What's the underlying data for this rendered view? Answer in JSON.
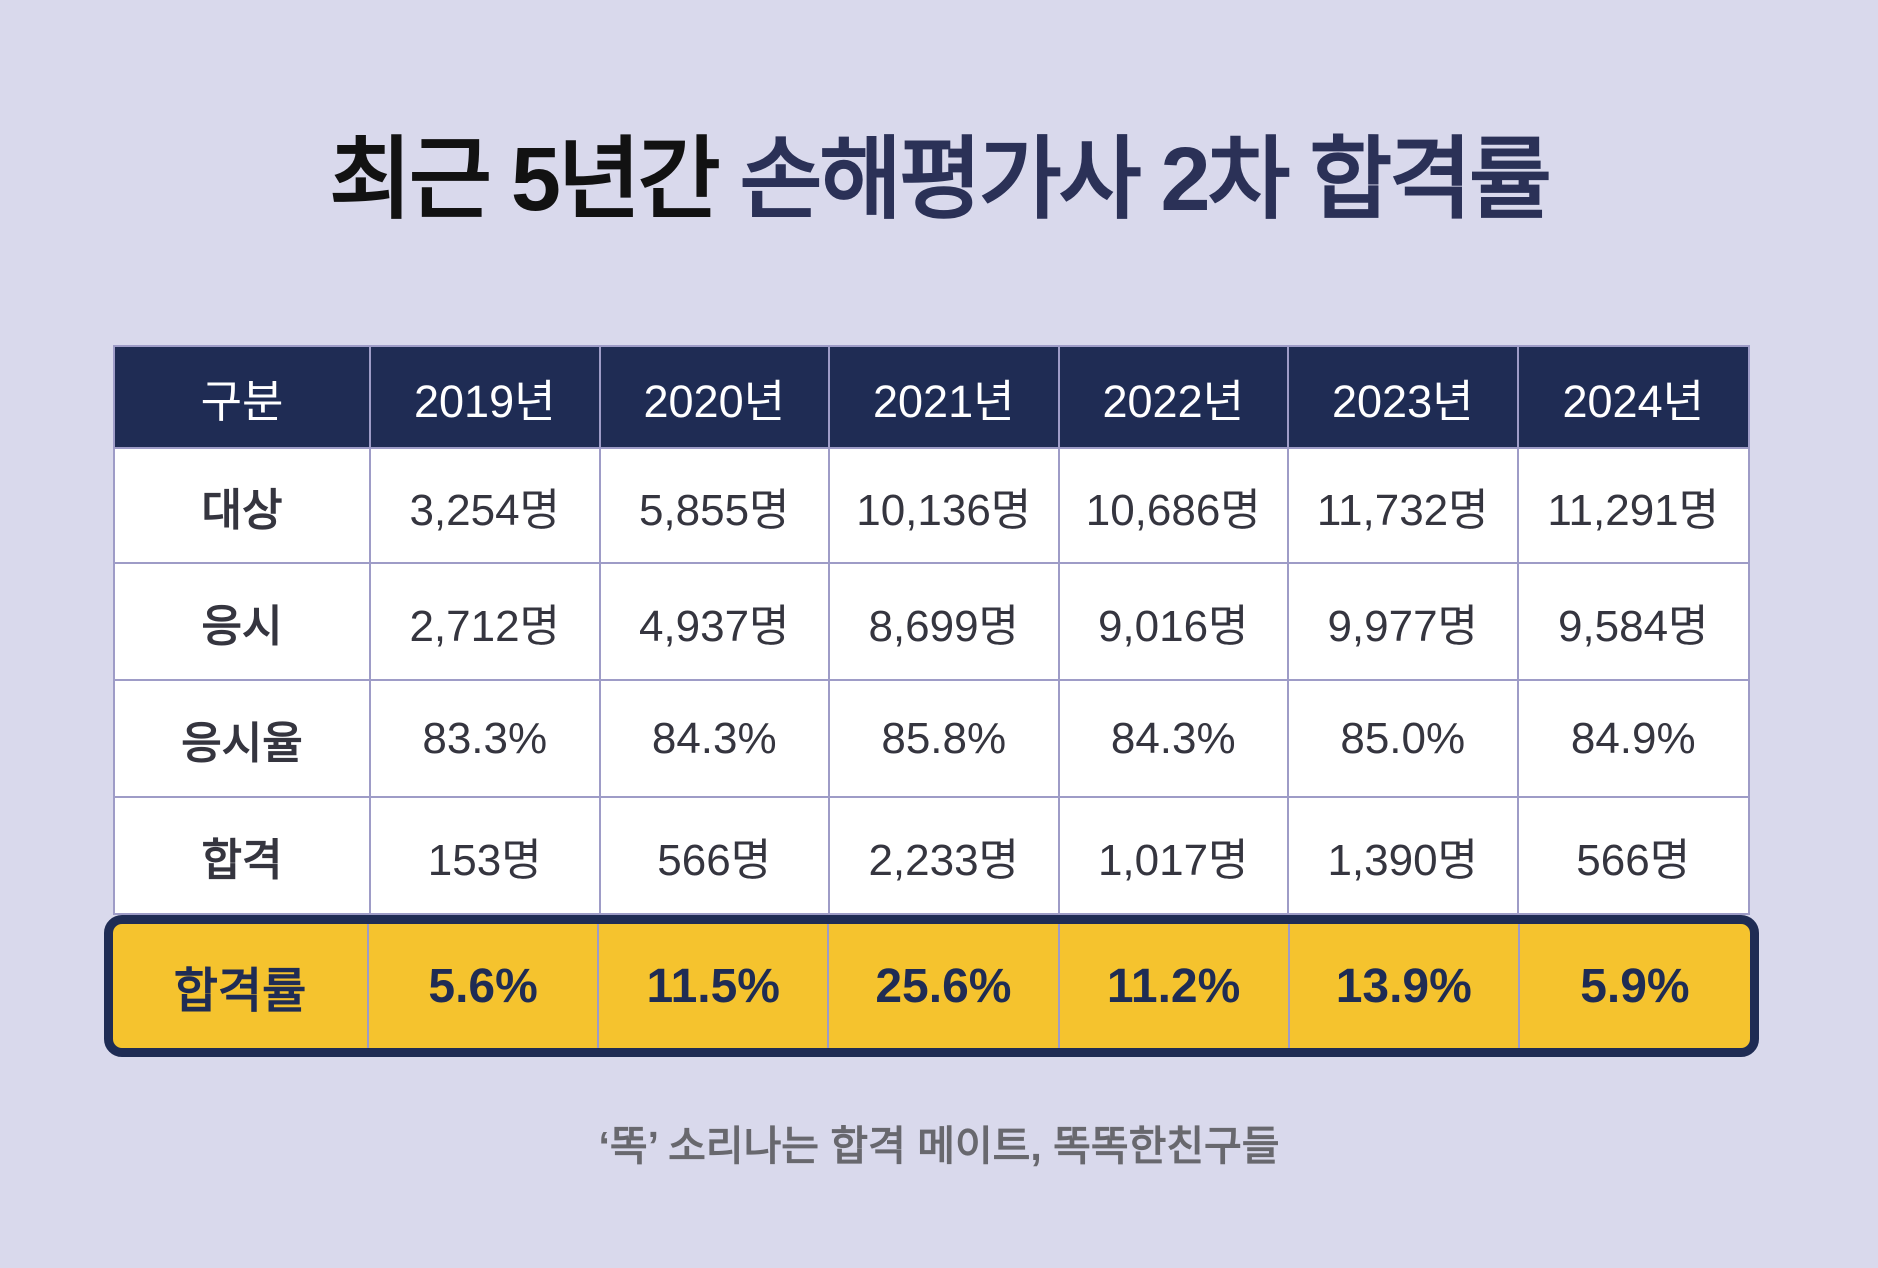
{
  "colors": {
    "background": "#d9d9ec",
    "header_bg": "#1f2c54",
    "header_text": "#ffffff",
    "grid_line": "#9e9cc7",
    "cell_bg": "#ffffff",
    "cell_text": "#35353f",
    "highlight_bg": "#f5c32e",
    "highlight_border": "#1f2c54",
    "highlight_text": "#1f2c54",
    "title_prefix": "#121212",
    "title_highlight": "#2b3157",
    "footer_text": "#68686e"
  },
  "title": {
    "prefix": "최근 5년간 ",
    "highlight": "손해평가사 2차 합격률"
  },
  "chart_data": {
    "type": "table",
    "title": "최근 5년간 손해평가사 2차 합격률",
    "columns": [
      "구분",
      "2019년",
      "2020년",
      "2021년",
      "2022년",
      "2023년",
      "2024년"
    ],
    "rows": [
      {
        "cells": [
          "대상",
          "3,254명",
          "5,855명",
          "10,136명",
          "10,686명",
          "11,732명",
          "11,291명"
        ],
        "highlight": false
      },
      {
        "cells": [
          "응시",
          "2,712명",
          "4,937명",
          "8,699명",
          "9,016명",
          "9,977명",
          "9,584명"
        ],
        "highlight": false
      },
      {
        "cells": [
          "응시율",
          "83.3%",
          "84.3%",
          "85.8%",
          "84.3%",
          "85.0%",
          "84.9%"
        ],
        "highlight": false
      },
      {
        "cells": [
          "합격",
          "153명",
          "566명",
          "2,233명",
          "1,017명",
          "1,390명",
          "566명"
        ],
        "highlight": false
      },
      {
        "cells": [
          "합격률",
          "5.6%",
          "11.5%",
          "25.6%",
          "11.2%",
          "13.9%",
          "5.9%"
        ],
        "highlight": true
      }
    ]
  },
  "footer": {
    "text": "‘똑’ 소리나는 합격 메이트, 똑똑한친구들"
  }
}
